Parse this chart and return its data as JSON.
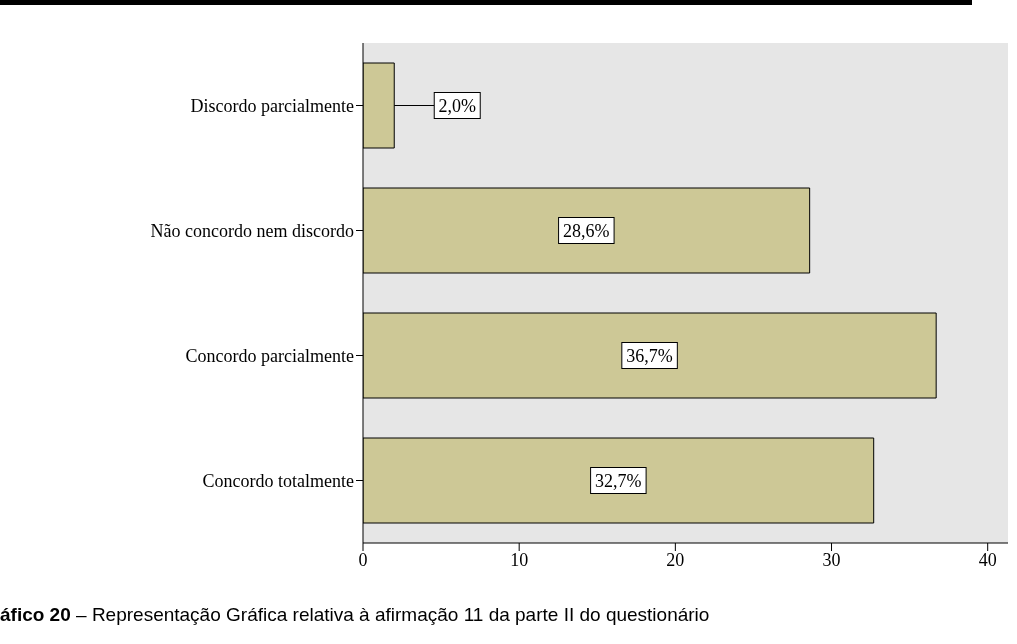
{
  "chart_data": {
    "type": "bar",
    "orientation": "horizontal",
    "title": "áfico 20 – Representação Gráfica relativa à afirmação 11 da parte II do questionário",
    "categories": [
      "Discordo parcialmente",
      "Não concordo nem discordo",
      "Concordo parcialmente",
      "Concordo totalmente"
    ],
    "values": [
      2.0,
      28.6,
      36.7,
      32.7
    ],
    "color": "#cdc896",
    "value_labels": [
      "2,0%",
      "28,6%",
      "36,7%",
      "32,7%"
    ],
    "xlim": [
      0,
      41.3
    ],
    "xticks": [
      0,
      10,
      20,
      30,
      40
    ]
  }
}
